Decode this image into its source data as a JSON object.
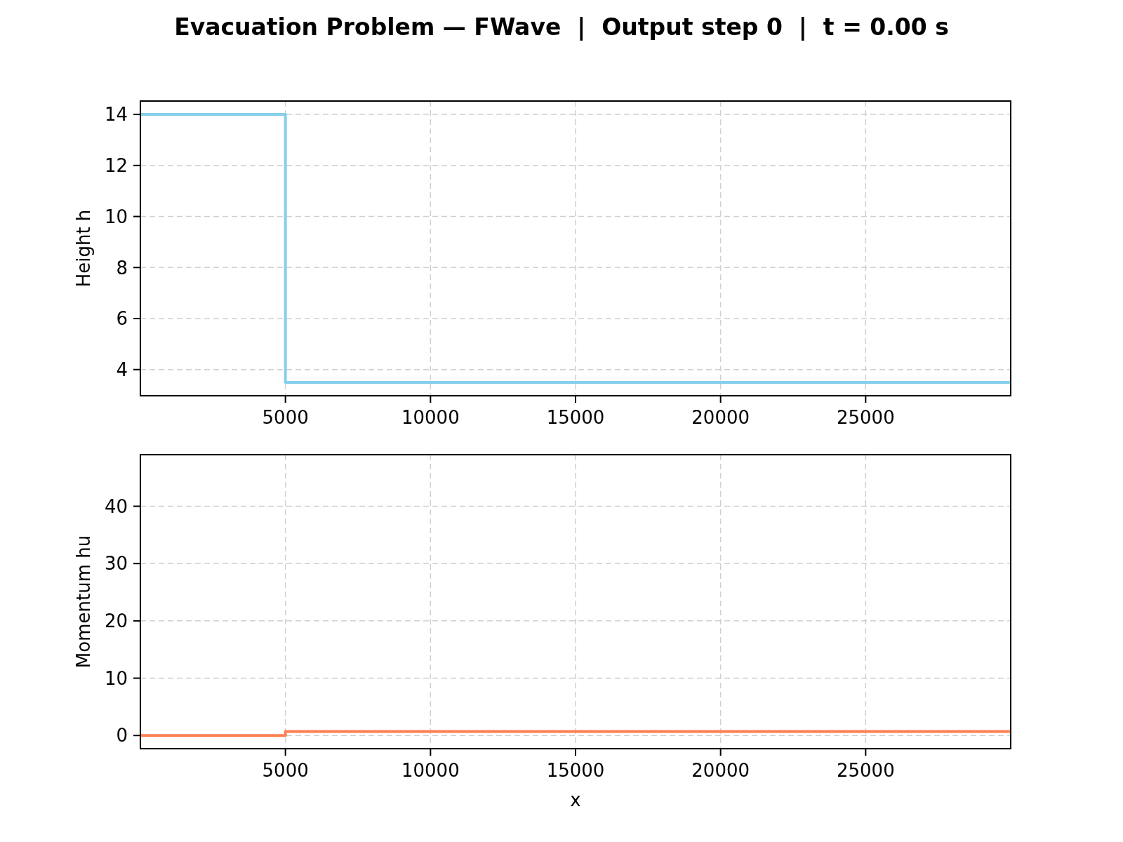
{
  "chart_data": [
    {
      "type": "step",
      "title": "Evacuation Problem — FWave  |  Output step 0  |  t = 0.00 s",
      "ylabel": "Height h",
      "x": [
        0,
        5000,
        30000
      ],
      "series": [
        {
          "color": "#87ceeb",
          "values": [
            14,
            3.5,
            3.5
          ]
        }
      ],
      "xlim": [
        0,
        30000
      ],
      "xticks": [
        5000,
        10000,
        15000,
        20000,
        25000
      ],
      "ylim": [
        2.975,
        14.525
      ],
      "yticks": [
        4,
        6,
        8,
        10,
        12,
        14
      ],
      "grid": true
    },
    {
      "type": "step",
      "xlabel": "x",
      "ylabel": "Momentum hu",
      "x": [
        0,
        5000,
        30000
      ],
      "series": [
        {
          "color": "#ff7f50",
          "values": [
            0,
            0.7,
            0.7
          ]
        }
      ],
      "xlim": [
        0,
        30000
      ],
      "xticks": [
        5000,
        10000,
        15000,
        20000,
        25000
      ],
      "ylim": [
        -2.3,
        49.0
      ],
      "yticks": [
        0,
        10,
        20,
        30,
        40
      ],
      "grid": true
    }
  ]
}
